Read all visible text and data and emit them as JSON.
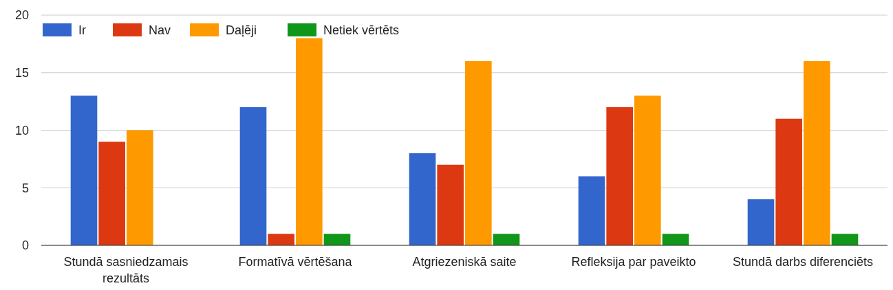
{
  "chart_data": {
    "type": "bar",
    "categories": [
      "Stundā sasniedzamais rezultāts",
      "Formatīvā vērtēšana",
      "Atgriezeniskā saite",
      "Refleksija par paveikto",
      "Stundā darbs diferenciēts"
    ],
    "series": [
      {
        "name": "Ir",
        "color": "#3366cc",
        "values": [
          13,
          12,
          8,
          6,
          4
        ]
      },
      {
        "name": "Nav",
        "color": "#dc3912",
        "values": [
          9,
          1,
          7,
          12,
          11
        ]
      },
      {
        "name": "Daļēji",
        "color": "#ff9900",
        "values": [
          10,
          18,
          16,
          13,
          16
        ]
      },
      {
        "name": "Netiek vērtēts",
        "color": "#109618",
        "values": [
          0,
          1,
          1,
          1,
          1
        ]
      }
    ],
    "ylim": [
      0,
      20
    ],
    "yticks": [
      0,
      5,
      10,
      15,
      20
    ],
    "grid": "y",
    "legend": "top left"
  }
}
